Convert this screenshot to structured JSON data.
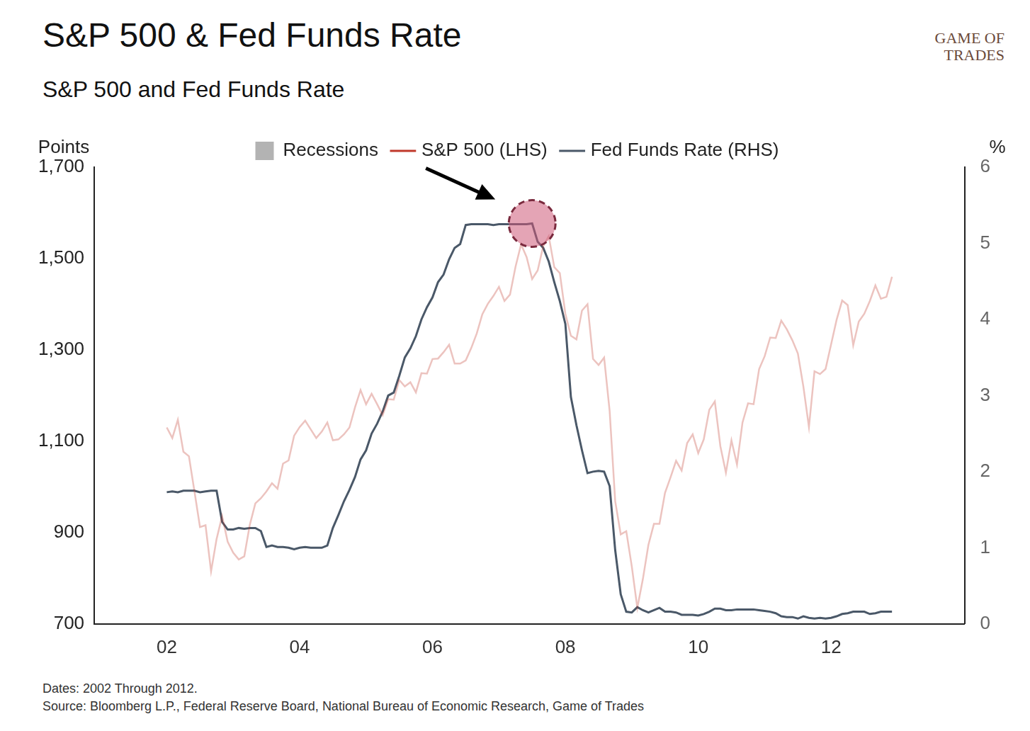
{
  "chart_data": {
    "type": "line",
    "title": "S&P 500 & Fed Funds Rate",
    "subtitle": "S&P 500 and Fed Funds Rate",
    "logo": "GAME OF TRADES",
    "y_label": "Points",
    "y2_label": "%",
    "notes": [
      "Dates: 2002 Through 2012.",
      "Source: Bloomberg L.P., Federal Reserve Board, National Bureau of Economic Research, Game of Trades"
    ],
    "categories": [
      "02",
      null,
      null,
      null,
      null,
      null,
      null,
      null,
      null,
      null,
      null,
      null,
      null,
      null,
      null,
      null,
      null,
      null,
      null,
      null,
      null,
      null,
      null,
      null,
      "04",
      null,
      null,
      null,
      null,
      null,
      null,
      null,
      null,
      null,
      null,
      null,
      null,
      null,
      null,
      null,
      null,
      null,
      null,
      null,
      null,
      null,
      null,
      null,
      "06",
      null,
      null,
      null,
      null,
      null,
      null,
      null,
      null,
      null,
      null,
      null,
      null,
      null,
      null,
      null,
      null,
      null,
      null,
      null,
      null,
      null,
      null,
      null,
      "08",
      null,
      null,
      null,
      null,
      null,
      null,
      null,
      null,
      null,
      null,
      null,
      null,
      null,
      null,
      null,
      null,
      null,
      null,
      null,
      null,
      null,
      null,
      null,
      "10",
      null,
      null,
      null,
      null,
      null,
      null,
      null,
      null,
      null,
      null,
      null,
      null,
      null,
      null,
      null,
      null,
      null,
      null,
      null,
      null,
      null,
      null,
      null,
      "12",
      null,
      null,
      null,
      null,
      null,
      null,
      null,
      null,
      null,
      null,
      null
    ],
    "series": [
      {
        "name": "Recessions",
        "type": "bar",
        "color": "#b3b3b3",
        "values": [
          null,
          null,
          null,
          null,
          null,
          null,
          null,
          null,
          null,
          null,
          null,
          null,
          null,
          null,
          null,
          null,
          null,
          null,
          null,
          null,
          null,
          null,
          null,
          null,
          null,
          null,
          null,
          null,
          null,
          null,
          null,
          null,
          null,
          null,
          null,
          null,
          null,
          null,
          null,
          null,
          null,
          null,
          null,
          null,
          null,
          null,
          null,
          null,
          null,
          null,
          null,
          null,
          null,
          null,
          null,
          null,
          null,
          null,
          null,
          null,
          null,
          null,
          null,
          null,
          null,
          null,
          null,
          null,
          null,
          null,
          null,
          null,
          null,
          null,
          null,
          null,
          null,
          null,
          null,
          null,
          null,
          null,
          null,
          null,
          null,
          null,
          null,
          null,
          null,
          null,
          null,
          null,
          null,
          null,
          null,
          null,
          null,
          null,
          null,
          null,
          null,
          null,
          null,
          null,
          null,
          null,
          null,
          null,
          null,
          null,
          null,
          null,
          null,
          null,
          null,
          null,
          null,
          null,
          null,
          null,
          null,
          null,
          null,
          null,
          null,
          null,
          null,
          null,
          null,
          null,
          null,
          null
        ]
      },
      {
        "name": "S&P 500 (LHS)",
        "type": "line",
        "color": "#c0392b",
        "values": [
          1130,
          1107,
          1147,
          1077,
          1067,
          990,
          912,
          916,
          815,
          886,
          936,
          880,
          856,
          841,
          848,
          917,
          964,
          975,
          990,
          1008,
          996,
          1051,
          1058,
          1112,
          1131,
          1145,
          1126,
          1107,
          1121,
          1141,
          1102,
          1104,
          1115,
          1130,
          1174,
          1212,
          1181,
          1204,
          1181,
          1157,
          1192,
          1191,
          1234,
          1220,
          1229,
          1207,
          1249,
          1248,
          1280,
          1281,
          1295,
          1311,
          1270,
          1270,
          1277,
          1304,
          1336,
          1378,
          1401,
          1418,
          1438,
          1407,
          1421,
          1482,
          1531,
          1503,
          1455,
          1474,
          1527,
          1549,
          1481,
          1468,
          1379,
          1331,
          1323,
          1386,
          1400,
          1280,
          1267,
          1283,
          1166,
          969,
          896,
          903,
          826,
          735,
          798,
          873,
          919,
          919,
          987,
          1021,
          1057,
          1036,
          1096,
          1115,
          1074,
          1104,
          1169,
          1187,
          1089,
          1031,
          1102,
          1049,
          1141,
          1183,
          1181,
          1258,
          1286,
          1327,
          1326,
          1364,
          1345,
          1321,
          1292,
          1219,
          1131,
          1253,
          1247,
          1258,
          1312,
          1366,
          1408,
          1398,
          1310,
          1362,
          1379,
          1407,
          1441,
          1412,
          1416,
          1460
        ]
      },
      {
        "name": "Fed Funds Rate (RHS)",
        "type": "line",
        "color": "#4a5868",
        "axis": "y2",
        "values": [
          1.73,
          1.74,
          1.73,
          1.75,
          1.75,
          1.75,
          1.73,
          1.74,
          1.75,
          1.75,
          1.34,
          1.24,
          1.24,
          1.26,
          1.25,
          1.26,
          1.26,
          1.22,
          1.01,
          1.03,
          1.01,
          1.01,
          1.0,
          0.98,
          1.0,
          1.01,
          1.0,
          1.0,
          1.0,
          1.03,
          1.26,
          1.43,
          1.61,
          1.76,
          1.93,
          2.16,
          2.28,
          2.5,
          2.63,
          2.79,
          3.0,
          3.04,
          3.26,
          3.5,
          3.62,
          3.78,
          4.0,
          4.16,
          4.29,
          4.49,
          4.59,
          4.79,
          4.94,
          4.99,
          5.24,
          5.25,
          5.25,
          5.25,
          5.25,
          5.24,
          5.25,
          5.25,
          5.25,
          5.25,
          5.25,
          5.25,
          5.26,
          5.02,
          4.94,
          4.76,
          4.49,
          4.24,
          3.94,
          2.98,
          2.61,
          2.28,
          1.98,
          2.0,
          2.01,
          2.0,
          1.81,
          0.97,
          0.39,
          0.16,
          0.15,
          0.22,
          0.18,
          0.15,
          0.18,
          0.21,
          0.16,
          0.16,
          0.15,
          0.12,
          0.12,
          0.12,
          0.11,
          0.13,
          0.16,
          0.2,
          0.2,
          0.18,
          0.18,
          0.19,
          0.19,
          0.19,
          0.19,
          0.18,
          0.17,
          0.16,
          0.14,
          0.1,
          0.09,
          0.09,
          0.07,
          0.1,
          0.08,
          0.07,
          0.08,
          0.07,
          0.08,
          0.1,
          0.13,
          0.14,
          0.16,
          0.16,
          0.16,
          0.13,
          0.14,
          0.16,
          0.16,
          0.16
        ]
      }
    ],
    "ylim": [
      700,
      1700
    ],
    "yticks": [
      {
        "value": 700,
        "label": "700"
      },
      {
        "value": 900,
        "label": "900"
      },
      {
        "value": 1100,
        "label": "1,100"
      },
      {
        "value": 1300,
        "label": "1,300"
      },
      {
        "value": 1500,
        "label": "1,500"
      },
      {
        "value": 1700,
        "label": "1,700"
      }
    ],
    "y2lim": [
      0,
      6
    ],
    "y2ticks": [
      0,
      1,
      2,
      3,
      4,
      5,
      6
    ],
    "legend": "top",
    "grid": false
  }
}
